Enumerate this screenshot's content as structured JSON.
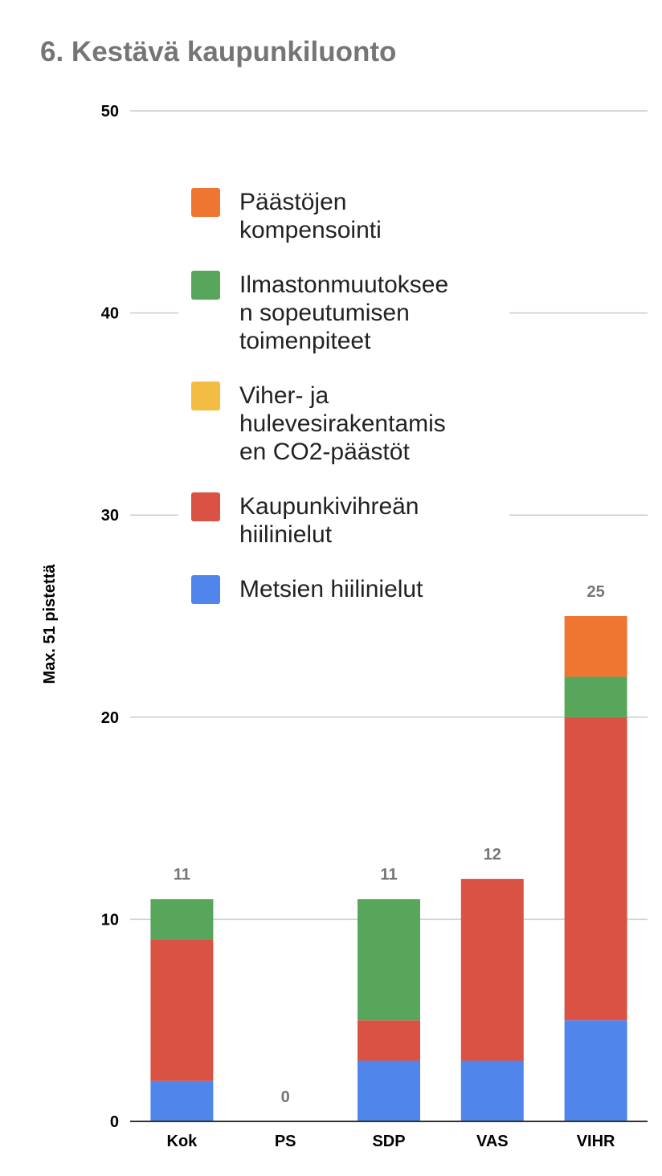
{
  "chart_data": {
    "type": "bar",
    "stacked": true,
    "title": "6. Kestävä kaupunkiluonto",
    "xlabel": "",
    "ylabel": "Max. 51 pistettä",
    "ylim": [
      0,
      50
    ],
    "yticks": [
      0,
      10,
      20,
      30,
      40,
      50
    ],
    "grid": true,
    "legend_position": "inside-top-left",
    "categories": [
      "Kok",
      "PS",
      "SDP",
      "VAS",
      "VIHR"
    ],
    "totals": [
      11,
      0,
      11,
      12,
      25
    ],
    "series": [
      {
        "name": "Metsien hiilinielut",
        "color": "#5086ec",
        "values": [
          2,
          0,
          3,
          3,
          5
        ],
        "legend_lines": [
          "Metsien hiilinielut"
        ]
      },
      {
        "name": "Kaupunkivihreän hiilinielut",
        "color": "#da5243",
        "values": [
          7,
          0,
          2,
          9,
          15
        ],
        "legend_lines": [
          "Kaupunkivihreän",
          "hiilinielut"
        ]
      },
      {
        "name": "Viher- ja hulevesirakentamisen CO2-päästöt",
        "color": "#f3bc42",
        "values": [
          0,
          0,
          0,
          0,
          0
        ],
        "legend_lines": [
          "Viher- ja",
          "hulevesirakentamis",
          "en CO2-päästöt"
        ]
      },
      {
        "name": "Ilmastonmuutokseen sopeutumisen toimenpiteet",
        "color": "#58a65c",
        "values": [
          2,
          0,
          6,
          0,
          2
        ],
        "legend_lines": [
          "Ilmastonmuutoksee",
          "n sopeutumisen",
          "toimenpiteet"
        ]
      },
      {
        "name": "Päästöjen kompensointi",
        "color": "#ef7631",
        "values": [
          0,
          0,
          0,
          0,
          3
        ],
        "legend_lines": [
          "Päästöjen",
          "kompensointi"
        ]
      }
    ],
    "legend_order": [
      4,
      3,
      2,
      1,
      0
    ]
  }
}
